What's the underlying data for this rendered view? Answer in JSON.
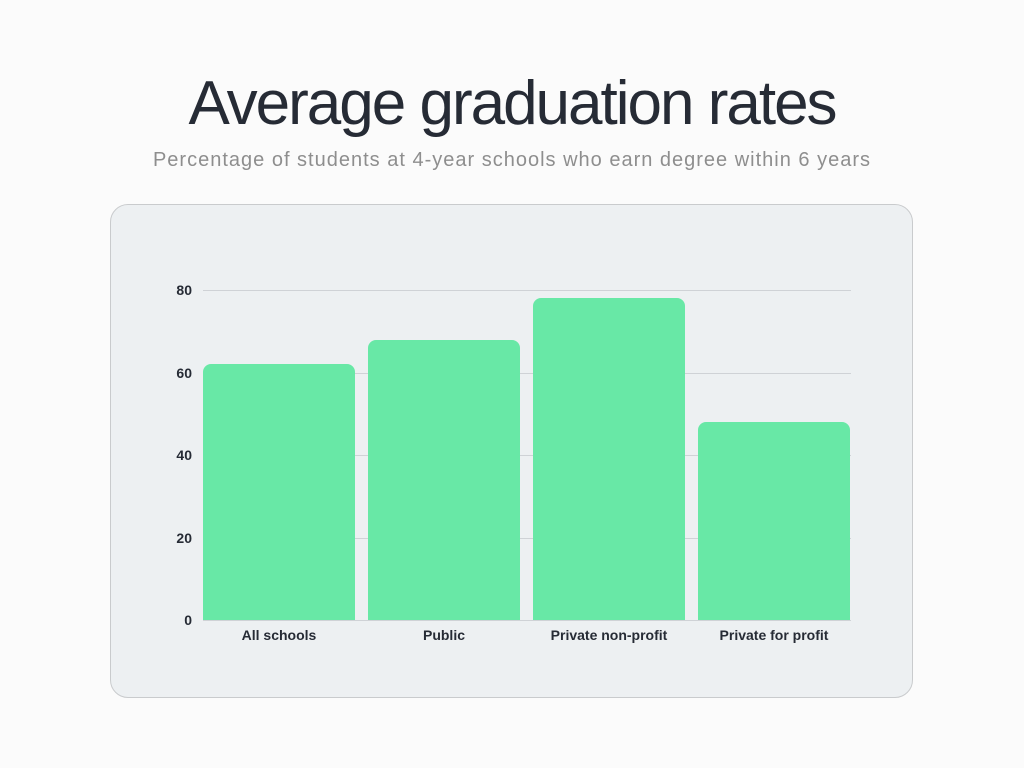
{
  "header": {
    "title": "Average graduation rates",
    "subtitle": "Percentage of students at 4-year schools who earn degree within 6 years"
  },
  "colors": {
    "bar": "#68e8a6",
    "panel": "#edf0f2",
    "text": "#262b35",
    "subtitle": "#8e8e8e"
  },
  "chart_data": {
    "type": "bar",
    "title": "Average graduation rates",
    "subtitle": "Percentage of students at 4-year schools who earn degree within 6 years",
    "categories": [
      "All schools",
      "Public",
      "Private non-profit",
      "Private for profit"
    ],
    "values": [
      62,
      68,
      78,
      48
    ],
    "xlabel": "",
    "ylabel": "",
    "ylim": [
      0,
      80
    ],
    "yticks": [
      "0",
      "20",
      "40",
      "60",
      "80"
    ],
    "grid": true,
    "legend": null
  }
}
